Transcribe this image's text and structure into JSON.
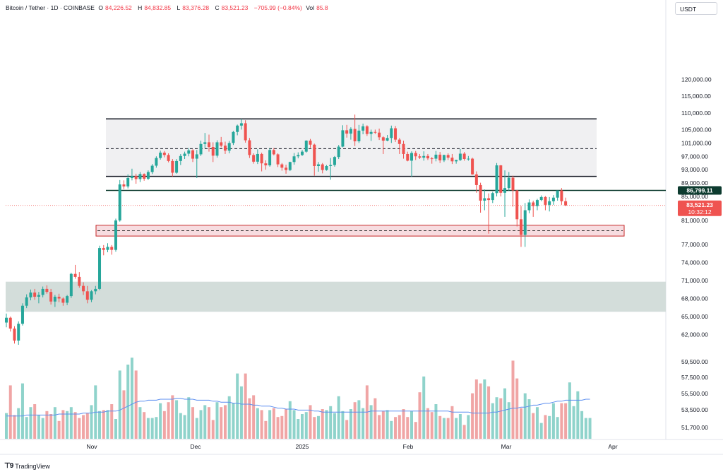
{
  "header": {
    "symbol": "Bitcoin / Tether · 1D · COINBASE",
    "o_label": "O",
    "o": "84,226.52",
    "h_label": "H",
    "h": "84,832.85",
    "l_label": "L",
    "l": "83,376.28",
    "c_label": "C",
    "c": "83,521.23",
    "chg": "−705.99 (−0.84%)",
    "vol_label": "Vol",
    "vol": "85.8"
  },
  "currency": "USDT",
  "logo_text": "TradingView",
  "colors": {
    "up": "#26a69a",
    "down": "#ef5350",
    "vol_up": "#8fd3cb",
    "vol_down": "#f0a5a5",
    "ma": "#5b8ef0",
    "price_line": "#ef5350"
  },
  "chart_data": {
    "type": "candlestick",
    "y_ticks": [
      "120,000.00",
      "115,000.00",
      "110,000.00",
      "105,000.00",
      "101,000.00",
      "97,000.00",
      "93,000.00",
      "89,000.00",
      "85,000.00",
      "81,000.00",
      "77,000.00",
      "74,000.00",
      "71,000.00",
      "68,000.00",
      "65,000.00",
      "62,000.00",
      "59,500.00",
      "57,500.00",
      "55,500.00",
      "53,500.00",
      "51,700.00"
    ],
    "x_ticks": [
      "Nov",
      "Dec",
      "2025",
      "Feb",
      "Mar",
      "Apr"
    ],
    "last_price": "83,521.23",
    "countdown": "10:32:12",
    "level_label": "86,799.11",
    "level": 86799.11,
    "box": {
      "top": 108200,
      "mid": 99300,
      "bottom": 91000
    },
    "support_zone": {
      "top": 80200,
      "mid": 79300,
      "bottom": 78400
    },
    "lower_zone": {
      "top": 70800,
      "bottom": 65800
    },
    "candles": [
      [
        64000,
        65500,
        63200,
        64800
      ],
      [
        64800,
        65000,
        62500,
        63000
      ],
      [
        63000,
        63400,
        60500,
        61000
      ],
      [
        61000,
        64200,
        60300,
        63800
      ],
      [
        63800,
        67200,
        63500,
        66800
      ],
      [
        66800,
        68700,
        66400,
        68200
      ],
      [
        68200,
        69500,
        67700,
        69000
      ],
      [
        69000,
        69600,
        67800,
        68300
      ],
      [
        68300,
        69100,
        67200,
        68600
      ],
      [
        68600,
        70000,
        68200,
        69600
      ],
      [
        69600,
        70200,
        68800,
        69100
      ],
      [
        69100,
        69600,
        67000,
        67500
      ],
      [
        67500,
        68600,
        66600,
        68300
      ],
      [
        68300,
        68800,
        67400,
        68000
      ],
      [
        68000,
        68200,
        66800,
        67300
      ],
      [
        67300,
        68600,
        66900,
        68400
      ],
      [
        68400,
        72300,
        68100,
        72100
      ],
      [
        72100,
        73600,
        71300,
        71600
      ],
      [
        71600,
        72400,
        69800,
        70100
      ],
      [
        70100,
        70700,
        68600,
        69200
      ],
      [
        69200,
        70100,
        67200,
        67800
      ],
      [
        67800,
        69400,
        67400,
        69200
      ],
      [
        69200,
        70100,
        68700,
        69600
      ],
      [
        69600,
        76800,
        69400,
        76400
      ],
      [
        76400,
        76900,
        75200,
        76100
      ],
      [
        76100,
        77200,
        75700,
        76600
      ],
      [
        76600,
        76900,
        75300,
        76100
      ],
      [
        76100,
        81300,
        75800,
        81000
      ],
      [
        81000,
        89900,
        80800,
        88600
      ],
      [
        88600,
        89800,
        87200,
        88000
      ],
      [
        88000,
        91600,
        87400,
        90500
      ],
      [
        90500,
        93300,
        89800,
        91100
      ],
      [
        91100,
        91800,
        88800,
        90200
      ],
      [
        90200,
        92300,
        89300,
        91700
      ],
      [
        91700,
        91900,
        89700,
        90300
      ],
      [
        90300,
        92800,
        89900,
        92300
      ],
      [
        92300,
        94700,
        91700,
        94200
      ],
      [
        94200,
        97000,
        93600,
        96500
      ],
      [
        96500,
        98700,
        96000,
        98100
      ],
      [
        98100,
        98600,
        96700,
        97400
      ],
      [
        97400,
        97900,
        95200,
        95600
      ],
      [
        95600,
        96200,
        91000,
        92100
      ],
      [
        92100,
        96200,
        91800,
        95600
      ],
      [
        95600,
        97700,
        94400,
        97100
      ],
      [
        97100,
        98400,
        96200,
        97800
      ],
      [
        97800,
        99500,
        97000,
        98800
      ],
      [
        98800,
        99100,
        95300,
        96300
      ],
      [
        96300,
        98900,
        90500,
        97600
      ],
      [
        97600,
        101700,
        97100,
        100700
      ],
      [
        100700,
        104000,
        99400,
        101200
      ],
      [
        101200,
        103500,
        98400,
        99800
      ],
      [
        99800,
        101200,
        95300,
        97200
      ],
      [
        97200,
        101800,
        96600,
        101200
      ],
      [
        101200,
        102800,
        99700,
        100200
      ],
      [
        100200,
        101400,
        97700,
        98700
      ],
      [
        98700,
        101600,
        97900,
        101000
      ],
      [
        101000,
        104600,
        100400,
        104300
      ],
      [
        104300,
        106500,
        103300,
        106200
      ],
      [
        106200,
        108200,
        105000,
        106900
      ],
      [
        106900,
        107800,
        101100,
        101800
      ],
      [
        101800,
        102500,
        96500,
        97400
      ],
      [
        97400,
        97900,
        94800,
        95400
      ],
      [
        95400,
        99100,
        94700,
        97700
      ],
      [
        97700,
        98100,
        92500,
        94900
      ],
      [
        94900,
        95800,
        93000,
        94300
      ],
      [
        94300,
        99500,
        93900,
        98900
      ],
      [
        98900,
        99500,
        97300,
        97600
      ],
      [
        97600,
        97900,
        93800,
        94600
      ],
      [
        94600,
        95000,
        92700,
        93600
      ],
      [
        93600,
        94500,
        91800,
        92900
      ],
      [
        92900,
        95400,
        92600,
        95300
      ],
      [
        95300,
        98000,
        94500,
        97000
      ],
      [
        97000,
        98200,
        96400,
        97400
      ],
      [
        97400,
        98900,
        97100,
        98400
      ],
      [
        98400,
        101800,
        98100,
        101700
      ],
      [
        101700,
        102200,
        99600,
        100500
      ],
      [
        100500,
        100800,
        91200,
        94100
      ],
      [
        94100,
        95300,
        92400,
        94600
      ],
      [
        94600,
        95000,
        91900,
        92900
      ],
      [
        92900,
        94400,
        92700,
        94100
      ],
      [
        94100,
        96500,
        90000,
        94400
      ],
      [
        94400,
        97100,
        93900,
        96800
      ],
      [
        96800,
        100400,
        96200,
        99900
      ],
      [
        99900,
        106300,
        99700,
        104800
      ],
      [
        104800,
        106400,
        102600,
        103800
      ],
      [
        103800,
        105700,
        102000,
        105200
      ],
      [
        105200,
        109500,
        100100,
        101500
      ],
      [
        101500,
        106400,
        101000,
        104700
      ],
      [
        104700,
        106800,
        103600,
        106000
      ],
      [
        106000,
        106300,
        103100,
        103700
      ],
      [
        103700,
        105000,
        101600,
        104300
      ],
      [
        104300,
        105000,
        103700,
        104100
      ],
      [
        104100,
        105300,
        101900,
        102700
      ],
      [
        102700,
        103000,
        97700,
        101700
      ],
      [
        101700,
        103400,
        101500,
        102500
      ],
      [
        102500,
        106200,
        101000,
        105400
      ],
      [
        105400,
        106100,
        101300,
        102000
      ],
      [
        102000,
        102500,
        97700,
        100700
      ],
      [
        100700,
        101700,
        96300,
        97700
      ],
      [
        97700,
        98400,
        95500,
        95700
      ],
      [
        95700,
        98500,
        90900,
        98000
      ],
      [
        98000,
        98600,
        95900,
        97000
      ],
      [
        97000,
        97700,
        96200,
        96600
      ],
      [
        96600,
        98500,
        95700,
        97100
      ],
      [
        97100,
        97700,
        95900,
        96400
      ],
      [
        96400,
        96800,
        94800,
        96300
      ],
      [
        96300,
        98600,
        95500,
        97500
      ],
      [
        97500,
        98300,
        95000,
        95800
      ],
      [
        95800,
        97500,
        95300,
        97400
      ],
      [
        97400,
        97900,
        95900,
        96600
      ],
      [
        96600,
        97700,
        94700,
        95500
      ],
      [
        95500,
        96000,
        94800,
        95900
      ],
      [
        95900,
        99200,
        95600,
        97800
      ],
      [
        97800,
        98300,
        95700,
        96200
      ],
      [
        96200,
        97100,
        95700,
        96300
      ],
      [
        96300,
        96600,
        91500,
        91600
      ],
      [
        91600,
        92500,
        86100,
        88400
      ],
      [
        88400,
        89100,
        82300,
        84300
      ],
      [
        84300,
        87100,
        82700,
        84700
      ],
      [
        84700,
        85900,
        78800,
        84400
      ],
      [
        84400,
        86400,
        83900,
        86000
      ],
      [
        86000,
        95000,
        85000,
        94300
      ],
      [
        94300,
        94400,
        85000,
        86100
      ],
      [
        86100,
        92800,
        81600,
        87500
      ],
      [
        87500,
        92300,
        86700,
        90600
      ],
      [
        90600,
        91200,
        83300,
        86800
      ],
      [
        86800,
        86900,
        80000,
        81200
      ],
      [
        81200,
        83400,
        76600,
        78600
      ],
      [
        78600,
        83900,
        76600,
        82700
      ],
      [
        82700,
        84500,
        82200,
        84000
      ],
      [
        84000,
        84300,
        81600,
        83400
      ],
      [
        83400,
        84600,
        82700,
        84400
      ],
      [
        84400,
        85300,
        84200,
        84900
      ],
      [
        84900,
        85100,
        82700,
        83600
      ],
      [
        83600,
        84900,
        82500,
        84200
      ],
      [
        84200,
        85400,
        83600,
        84800
      ],
      [
        84800,
        86800,
        84300,
        86800
      ],
      [
        86800,
        87500,
        83600,
        84200
      ],
      [
        84200,
        84800,
        83400,
        83500
      ]
    ],
    "volumes": [
      2.6,
      5.4,
      2.4,
      3.1,
      5.6,
      2.2,
      3.2,
      3.5,
      2.4,
      2.1,
      2.8,
      2.5,
      3.2,
      1.8,
      2.9,
      2.8,
      3.2,
      2.7,
      2.1,
      2.4,
      2.6,
      3.4,
      5.4,
      2.8,
      2.9,
      2.9,
      3.5,
      2.0,
      6.9,
      4.9,
      7.5,
      8.2,
      6.9,
      3.2,
      2.7,
      2.1,
      2.1,
      2.2,
      3.6,
      2.8,
      3.7,
      4.4,
      3.9,
      2.6,
      2.4,
      4.2,
      3.2,
      2.1,
      2.9,
      3.4,
      3.2,
      1.9,
      3.7,
      3.2,
      3.4,
      4.3,
      3.6,
      6.6,
      5.3,
      6.6,
      4.1,
      4.4,
      3.1,
      2.9,
      1.8,
      2.9,
      3.1,
      2.2,
      2.3,
      3.0,
      3.8,
      2.9,
      2.0,
      2.5,
      2.7,
      3.4,
      2.2,
      2.3,
      3.0,
      2.9,
      3.3,
      2.6,
      4.3,
      2.8,
      1.9,
      3.0,
      3.7,
      3.9,
      3.1,
      5.4,
      3.4,
      4.1,
      2.4,
      2.8,
      2.9,
      1.8,
      2.2,
      2.4,
      3.0,
      2.2,
      2.8,
      1.7,
      4.7,
      6.3,
      3.1,
      2.7,
      3.5,
      2.3,
      2.1,
      2.1,
      3.3,
      2.1,
      2.5,
      1.4,
      2.4,
      4.6,
      6.0,
      5.6,
      6.0,
      5.3,
      3.6,
      4.2,
      4.1,
      5.1,
      3.7,
      7.9,
      6.1,
      3.1,
      4.6,
      4.0,
      2.6,
      3.2,
      1.6,
      2.4,
      2.3,
      3.6,
      2.2,
      3.6,
      3.6,
      5.7,
      3.3,
      4.8,
      2.8,
      2.1,
      2.1
    ],
    "ma": [
      2.3,
      2.3,
      2.3,
      2.3,
      2.3,
      2.4,
      2.4,
      2.4,
      2.4,
      2.4,
      2.4,
      2.4,
      2.4,
      2.5,
      2.5,
      2.5,
      2.5,
      2.5,
      2.5,
      2.6,
      2.6,
      2.6,
      2.7,
      2.7,
      2.7,
      2.8,
      2.8,
      2.8,
      2.9,
      3.1,
      3.3,
      3.5,
      3.7,
      3.8,
      3.8,
      3.9,
      3.9,
      3.9,
      4.0,
      4.0,
      4.0,
      4.0,
      4.1,
      4.1,
      4.0,
      4.0,
      4.0,
      3.9,
      3.9,
      3.9,
      3.9,
      3.8,
      3.8,
      3.7,
      3.7,
      3.7,
      3.6,
      3.6,
      3.5,
      3.5,
      3.5,
      3.4,
      3.4,
      3.3,
      3.3,
      3.3,
      3.2,
      3.1,
      3.1,
      3.0,
      3.0,
      3.0,
      2.9,
      2.9,
      2.9,
      2.9,
      2.8,
      2.8,
      2.7,
      2.7,
      2.7,
      2.7,
      2.7,
      2.7,
      2.7,
      2.7,
      2.7,
      2.7,
      2.7,
      2.7,
      2.8,
      2.8,
      2.8,
      2.8,
      2.8,
      2.8,
      2.8,
      2.8,
      2.8,
      2.8,
      2.8,
      2.8,
      2.8,
      2.8,
      2.8,
      2.8,
      2.8,
      2.8,
      2.8,
      2.8,
      2.7,
      2.7,
      2.7,
      2.7,
      2.7,
      2.6,
      2.6,
      2.6,
      2.6,
      2.6,
      2.7,
      2.7,
      2.8,
      2.9,
      3.0,
      3.1,
      3.1,
      3.2,
      3.2,
      3.3,
      3.4,
      3.4,
      3.5,
      3.6,
      3.6,
      3.7,
      3.8,
      3.8,
      3.9,
      3.9,
      3.9,
      3.9,
      3.9,
      4.0,
      4.0
    ]
  }
}
